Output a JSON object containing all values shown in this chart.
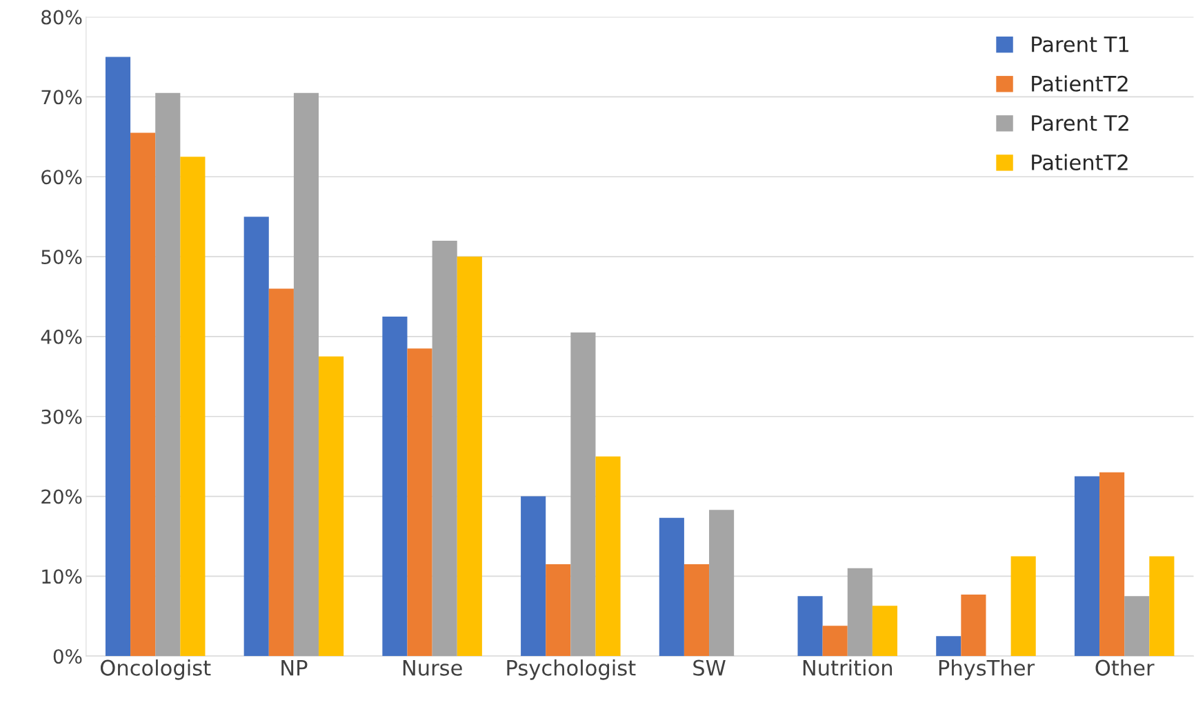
{
  "chart_data": {
    "type": "bar",
    "categories": [
      "Oncologist",
      "NP",
      "Nurse",
      "Psychologist",
      "SW",
      "Nutrition",
      "PhysTher",
      "Other"
    ],
    "series": [
      {
        "name": "Parent T1",
        "color": "#4472c4",
        "values": [
          75,
          55,
          42.5,
          20,
          17.3,
          7.5,
          2.5,
          22.5
        ]
      },
      {
        "name": "PatientT2",
        "color": "#ed7d31",
        "values": [
          65.5,
          46,
          38.5,
          11.5,
          11.5,
          3.8,
          7.7,
          23
        ]
      },
      {
        "name": "Parent T2",
        "color": "#a5a5a5",
        "values": [
          70.5,
          70.5,
          52,
          40.5,
          18.3,
          11,
          null,
          7.5
        ]
      },
      {
        "name": "PatientT2",
        "color": "#ffc000",
        "values": [
          62.5,
          37.5,
          50,
          25,
          null,
          6.3,
          12.5,
          12.5
        ]
      }
    ],
    "ylim": [
      0,
      80
    ],
    "yticks": [
      {
        "value": 0,
        "label": "0%"
      },
      {
        "value": 10,
        "label": "10%"
      },
      {
        "value": 20,
        "label": "20%"
      },
      {
        "value": 30,
        "label": "30%"
      },
      {
        "value": 40,
        "label": "40%"
      },
      {
        "value": 50,
        "label": "50%"
      },
      {
        "value": 60,
        "label": "60%"
      },
      {
        "value": 70,
        "label": "70%"
      },
      {
        "value": 80,
        "label": "80%"
      }
    ],
    "grid": "y",
    "legend": "top right"
  }
}
